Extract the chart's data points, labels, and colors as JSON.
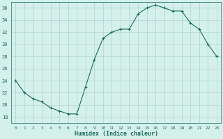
{
  "x": [
    0,
    1,
    2,
    3,
    4,
    5,
    6,
    7,
    8,
    9,
    10,
    11,
    12,
    13,
    14,
    15,
    16,
    17,
    18,
    19,
    20,
    21,
    22,
    23
  ],
  "y": [
    24,
    22,
    21,
    20.5,
    19.5,
    19,
    18.5,
    18.5,
    23,
    27.5,
    31,
    32,
    32.5,
    32.5,
    35,
    36,
    36.5,
    36,
    35.5,
    35.5,
    33.5,
    32.5,
    30,
    28
  ],
  "xlabel": "Humidex (Indice chaleur)",
  "ylabel": "",
  "xlim": [
    -0.5,
    23.5
  ],
  "ylim": [
    17,
    37
  ],
  "yticks": [
    18,
    20,
    22,
    24,
    26,
    28,
    30,
    32,
    34,
    36
  ],
  "xticks": [
    0,
    1,
    2,
    3,
    4,
    5,
    6,
    7,
    8,
    9,
    10,
    11,
    12,
    13,
    14,
    15,
    16,
    17,
    18,
    19,
    20,
    21,
    22,
    23
  ],
  "line_color": "#1a6b5a",
  "marker": "+",
  "bg_color": "#d4f0eb",
  "grid_color": "#aed4cc",
  "label_color": "#1a6b5a",
  "tick_color": "#1a6b5a"
}
